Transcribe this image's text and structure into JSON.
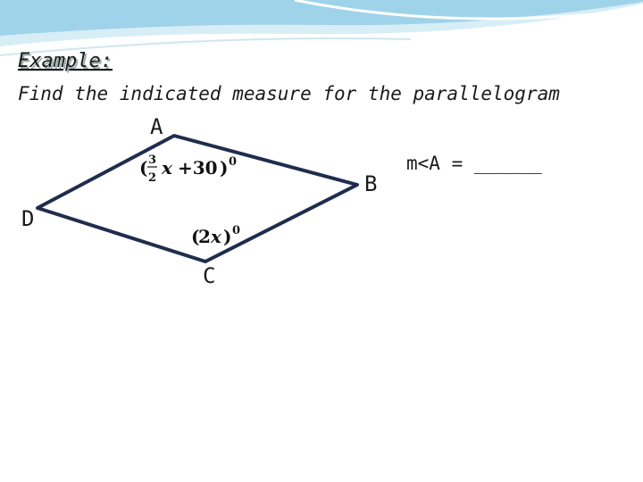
{
  "header": {
    "title": "Example:",
    "instruction": "Find the indicated measure for the parallelogram"
  },
  "vertices": {
    "A": "A",
    "B": "B",
    "C": "C",
    "D": "D"
  },
  "angle_A": {
    "open": "(",
    "numerator": "3",
    "denominator": "2",
    "variable": "x",
    "term": "+30",
    "close": ")",
    "exponent": "0"
  },
  "angle_C": {
    "open": "(",
    "coefficient": "2",
    "variable": "x",
    "close": ")",
    "exponent": "0"
  },
  "question": "m<A = ______"
}
